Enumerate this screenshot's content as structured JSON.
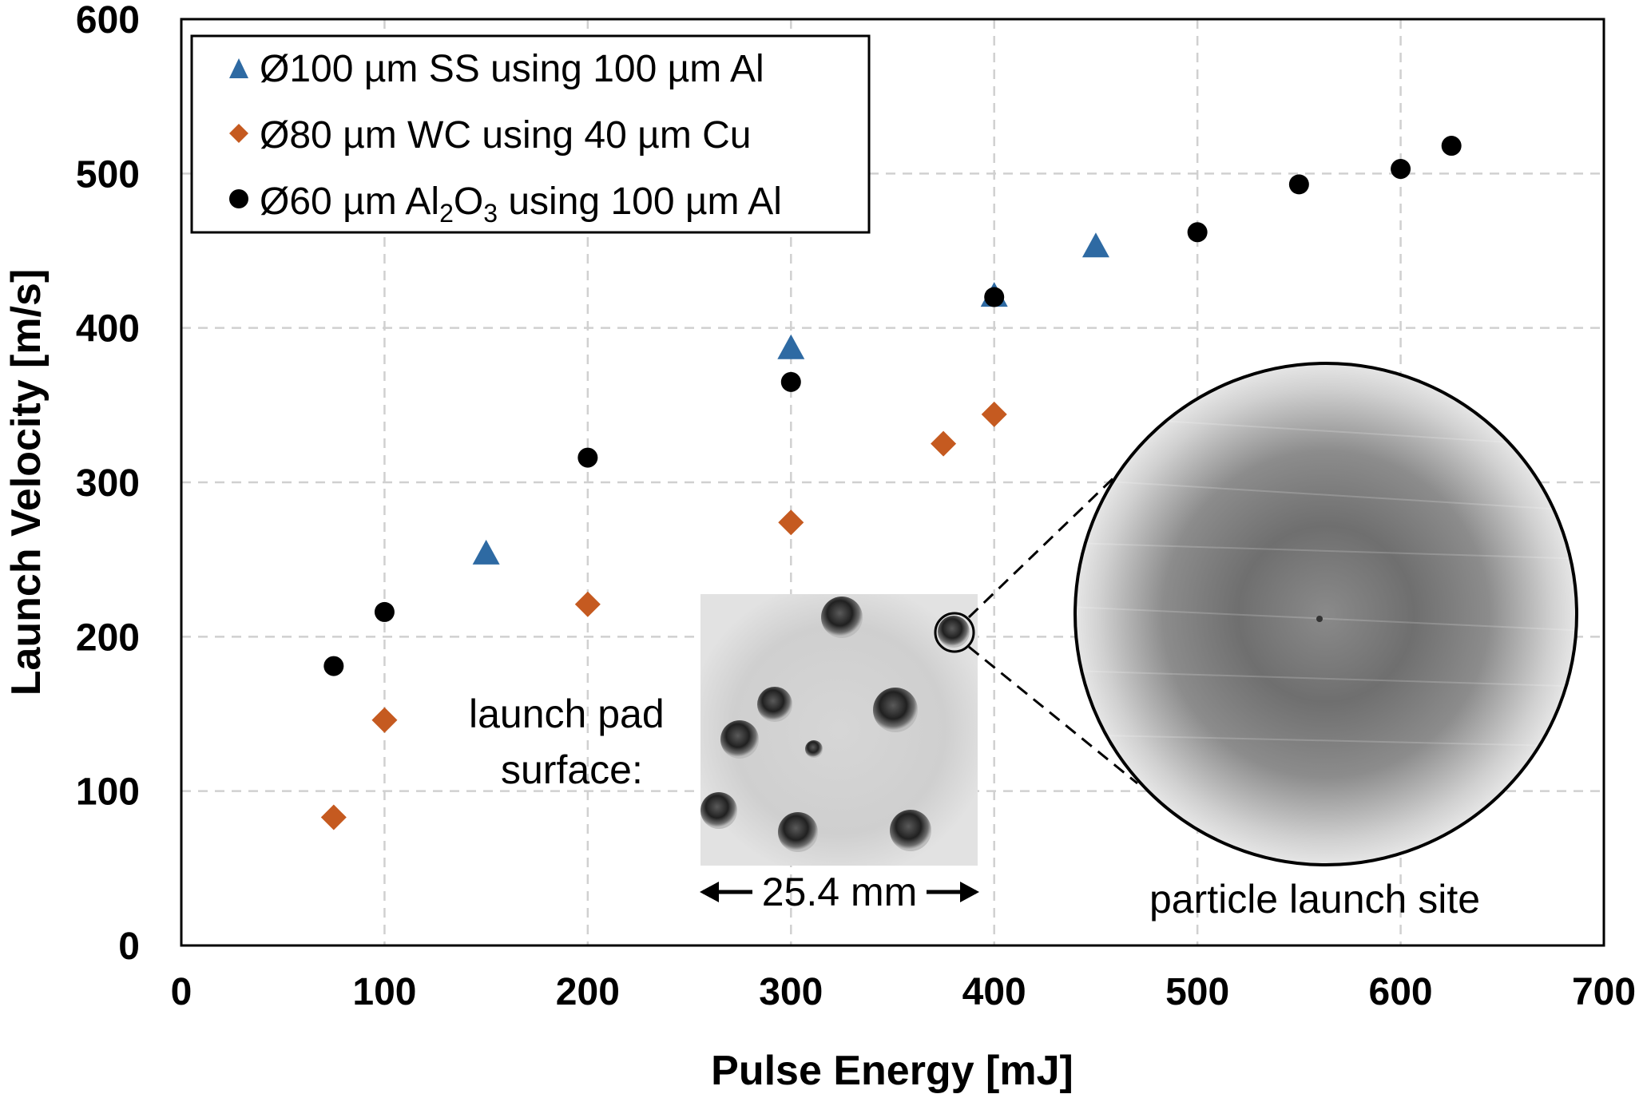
{
  "chart_data": {
    "type": "scatter",
    "title": "",
    "xlabel": "Pulse Energy [mJ]",
    "ylabel": "Launch Velocity [m/s]",
    "xlim": [
      0,
      700
    ],
    "ylim": [
      0,
      600
    ],
    "xticks": [
      0,
      100,
      200,
      300,
      400,
      500,
      600,
      700
    ],
    "yticks": [
      0,
      100,
      200,
      300,
      400,
      500,
      600
    ],
    "grid": true,
    "legend_position": "top-left",
    "series": [
      {
        "name": "Ø100 µm SS using 100 µm Al",
        "marker": "triangle",
        "color": "#2e6aa3",
        "x": [
          150,
          300,
          400,
          450
        ],
        "y": [
          254,
          387,
          421,
          453
        ]
      },
      {
        "name": "Ø80 µm WC using 40 µm Cu",
        "marker": "diamond",
        "color": "#c55a20",
        "x": [
          75,
          100,
          200,
          300,
          375,
          400
        ],
        "y": [
          83,
          146,
          221,
          274,
          325,
          344
        ]
      },
      {
        "name_parts": [
          "Ø60 µm Al",
          "2",
          "O",
          "3",
          " using 100 µm Al"
        ],
        "marker": "circle",
        "color": "#000000",
        "x": [
          75,
          100,
          200,
          300,
          400,
          500,
          550,
          600,
          625
        ],
        "y": [
          181,
          216,
          316,
          365,
          420,
          462,
          493,
          503,
          518
        ]
      }
    ],
    "annotations": {
      "pad_label_line1": "launch pad",
      "pad_label_line2": "surface:",
      "scale_label": "25.4 mm",
      "site_label": "particle launch site"
    }
  }
}
